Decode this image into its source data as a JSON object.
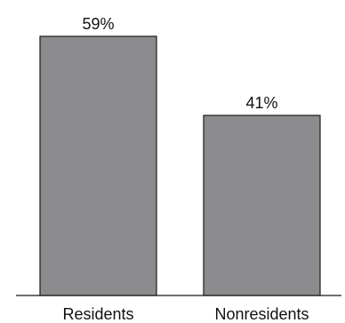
{
  "chart_data": {
    "type": "bar",
    "categories": [
      "Residents",
      "Nonresidents"
    ],
    "values": [
      59,
      41
    ],
    "value_labels": [
      "59%",
      "41%"
    ],
    "ylim": [
      0,
      60
    ],
    "grid": false,
    "colors": {
      "bar_fill": "#8c8c8e",
      "bar_stroke": "#1a1a1a",
      "axis": "#1a1a1a"
    }
  }
}
